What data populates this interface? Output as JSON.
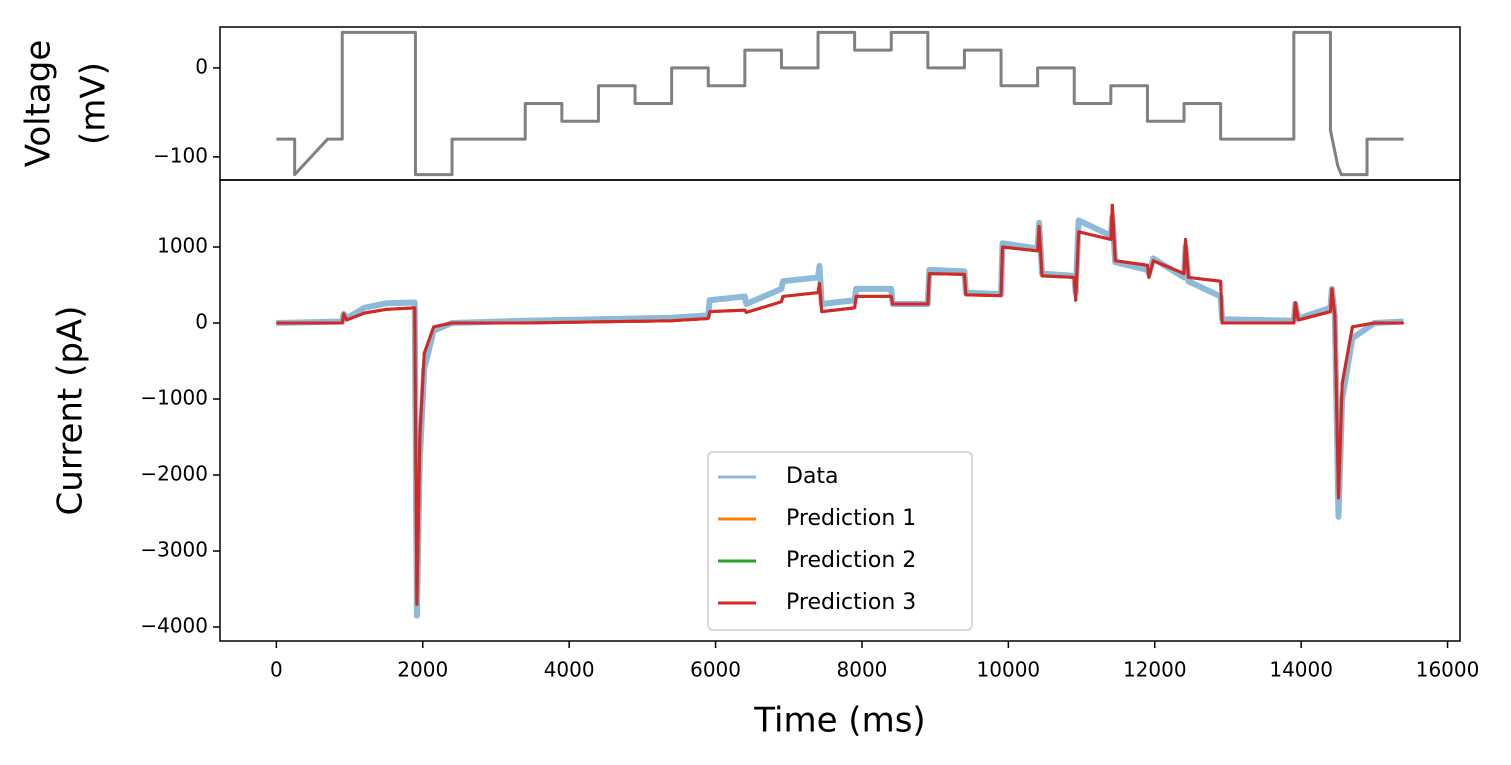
{
  "chart_data": [
    {
      "type": "line",
      "y_label": [
        "Voltage",
        "(mV)"
      ],
      "xlim": [
        -770,
        16170
      ],
      "ylim": [
        -126,
        46
      ],
      "yticks": [
        {
          "value": -100,
          "label": "−100"
        },
        0
      ],
      "x": [
        0,
        250,
        250,
        700,
        900,
        900,
        1900,
        1900,
        2400,
        2400,
        3400,
        3400,
        3900,
        3900,
        4400,
        4400,
        4900,
        4900,
        5400,
        5400,
        5900,
        5900,
        6400,
        6400,
        6900,
        6900,
        7400,
        7400,
        7900,
        7900,
        8400,
        8400,
        8900,
        8900,
        9400,
        9400,
        9900,
        9900,
        10400,
        10400,
        10900,
        10900,
        11400,
        11400,
        11900,
        11900,
        12400,
        12400,
        12900,
        12900,
        13900,
        13900,
        14400,
        14400,
        14500,
        14550,
        14900,
        14900,
        15400
      ],
      "series": [
        {
          "color": "#808080",
          "values": [
            -80,
            -80,
            -120,
            -80,
            -80,
            40,
            40,
            -120,
            -120,
            -80,
            -80,
            -40,
            -40,
            -60,
            -60,
            -20,
            -20,
            -40,
            -40,
            0,
            0,
            -20,
            -20,
            20,
            20,
            0,
            0,
            40,
            40,
            20,
            20,
            40,
            40,
            0,
            0,
            20,
            20,
            -20,
            -20,
            0,
            0,
            -40,
            -40,
            -20,
            -20,
            -60,
            -60,
            -40,
            -40,
            -80,
            -80,
            40,
            40,
            -70,
            -110,
            -120,
            -120,
            -80,
            -80
          ]
        }
      ]
    },
    {
      "type": "line",
      "x_label": "Time (ms)",
      "y_label": [
        "Current (pA)"
      ],
      "xlim": [
        -770,
        16170
      ],
      "ylim": [
        -4184,
        1882
      ],
      "xticks": [
        0,
        2000,
        4000,
        6000,
        8000,
        10000,
        12000,
        14000,
        16000
      ],
      "yticks": [
        {
          "value": -4000,
          "label": "−4000"
        },
        {
          "value": -3000,
          "label": "−3000"
        },
        {
          "value": -2000,
          "label": "−2000"
        },
        {
          "value": -1000,
          "label": "−1000"
        },
        0,
        1000
      ],
      "legend": "lower center",
      "x": [
        0,
        900,
        920,
        960,
        1200,
        1500,
        1890,
        1920,
        1960,
        2020,
        2150,
        2400,
        3400,
        5400,
        5900,
        5920,
        6400,
        6420,
        6900,
        6920,
        7400,
        7420,
        7450,
        7900,
        7920,
        8400,
        8420,
        8900,
        8920,
        9400,
        9420,
        9900,
        9920,
        10400,
        10420,
        10460,
        10900,
        10920,
        10960,
        11400,
        11420,
        11460,
        11900,
        11920,
        11980,
        12400,
        12420,
        12460,
        12900,
        12920,
        13900,
        13920,
        13960,
        14400,
        14420,
        14460,
        14510,
        14560,
        14700,
        15000,
        15400
      ],
      "series": [
        {
          "name": "Data",
          "color": "#8ebad9",
          "values": [
            0,
            20,
            120,
            60,
            200,
            260,
            270,
            -3850,
            -1800,
            -600,
            -100,
            0,
            30,
            70,
            100,
            300,
            350,
            250,
            450,
            550,
            600,
            750,
            250,
            300,
            450,
            450,
            250,
            250,
            700,
            680,
            400,
            380,
            1050,
            980,
            1320,
            650,
            620,
            400,
            1350,
            1150,
            1400,
            800,
            700,
            650,
            850,
            600,
            1000,
            550,
            350,
            50,
            30,
            250,
            60,
            200,
            450,
            100,
            -2550,
            -1000,
            -200,
            0,
            20
          ]
        },
        {
          "name": "Prediction 1",
          "color": "#ff7f0e",
          "values": [
            0,
            0,
            120,
            40,
            130,
            180,
            200,
            -3700,
            -1500,
            -400,
            -50,
            0,
            0,
            30,
            60,
            150,
            170,
            140,
            280,
            350,
            400,
            520,
            150,
            200,
            350,
            350,
            250,
            250,
            650,
            640,
            370,
            360,
            1000,
            950,
            1270,
            620,
            600,
            300,
            1200,
            1100,
            1550,
            820,
            760,
            600,
            820,
            650,
            1100,
            600,
            550,
            0,
            0,
            270,
            40,
            150,
            450,
            100,
            -2300,
            -800,
            -50,
            0,
            0
          ]
        },
        {
          "name": "Prediction 2",
          "color": "#2ca02c",
          "values": [
            0,
            0,
            120,
            40,
            130,
            180,
            200,
            -3700,
            -1500,
            -400,
            -50,
            0,
            0,
            30,
            60,
            150,
            170,
            140,
            280,
            350,
            400,
            520,
            150,
            200,
            350,
            350,
            250,
            250,
            650,
            640,
            370,
            360,
            1000,
            950,
            1270,
            620,
            600,
            300,
            1200,
            1100,
            1550,
            820,
            760,
            600,
            820,
            650,
            1100,
            600,
            550,
            0,
            0,
            270,
            40,
            150,
            450,
            100,
            -2300,
            -800,
            -50,
            0,
            0
          ]
        },
        {
          "name": "Prediction 3",
          "color": "#d62728",
          "values": [
            0,
            0,
            120,
            40,
            130,
            180,
            200,
            -3700,
            -1500,
            -400,
            -50,
            0,
            0,
            30,
            60,
            150,
            170,
            140,
            280,
            350,
            400,
            520,
            150,
            200,
            350,
            350,
            250,
            250,
            650,
            640,
            370,
            360,
            1000,
            950,
            1270,
            620,
            600,
            300,
            1200,
            1100,
            1550,
            820,
            760,
            600,
            820,
            650,
            1100,
            600,
            550,
            0,
            0,
            270,
            40,
            150,
            450,
            100,
            -2300,
            -800,
            -50,
            0,
            0
          ]
        }
      ]
    }
  ]
}
